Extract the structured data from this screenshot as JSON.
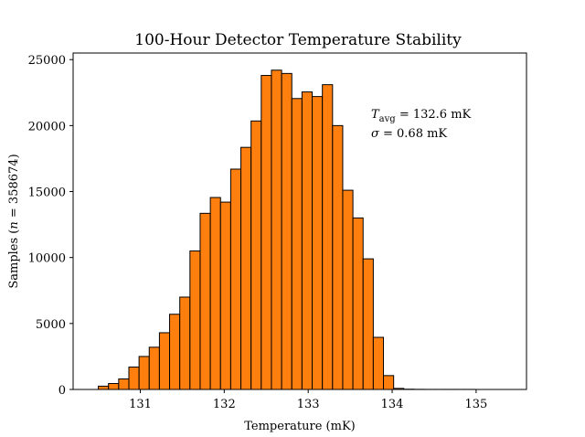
{
  "chart_data": {
    "type": "bar",
    "title": "100-Hour Detector Temperature Stability",
    "xlabel": "Temperature (mK)",
    "ylabel": {
      "prefix": "Samples (",
      "n_symbol": "n",
      "equals": " = ",
      "n_value": "358674",
      "suffix": ")"
    },
    "annotations": {
      "tavg": {
        "symbol": "T",
        "subscript": "avg",
        "text": " = 132.6 mK"
      },
      "sigma": {
        "symbol": "σ",
        "text": " = 0.68 mK"
      }
    },
    "xlim": [
      130.2,
      135.6
    ],
    "ylim": [
      0,
      25500
    ],
    "x_ticks": [
      131,
      132,
      133,
      134,
      135
    ],
    "y_ticks": [
      0,
      5000,
      10000,
      15000,
      20000,
      25000
    ],
    "bin_start": 130.5,
    "bin_width": 0.1213,
    "values": [
      250,
      450,
      800,
      1700,
      2500,
      3200,
      4300,
      5700,
      7000,
      10500,
      13350,
      14550,
      14200,
      16700,
      18350,
      20350,
      23800,
      24200,
      23950,
      22050,
      22550,
      22200,
      23100,
      20000,
      15100,
      13000,
      9900,
      3950,
      1050,
      80,
      20,
      10,
      5,
      5,
      5,
      5,
      5
    ],
    "bar_color": "#ff7f0e",
    "edge_color": "#000000",
    "grid": false
  }
}
